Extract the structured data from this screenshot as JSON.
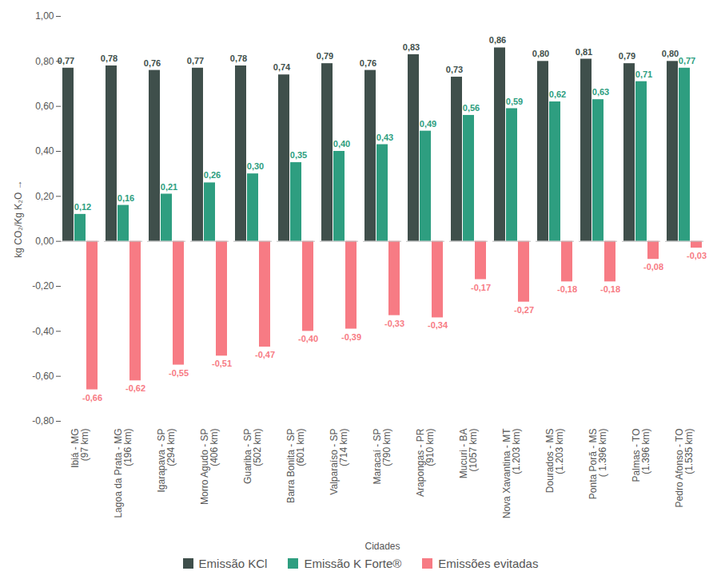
{
  "chart_data": {
    "type": "bar",
    "x_label": "Cidades",
    "y_label": "kg CO₂/Kg K₂O",
    "categories": [
      "Ibiá - MG\n(97 km)",
      "Lagoa da Prata - MG\n(196 km)",
      "Igarapava - SP\n(294 km)",
      "Morro Agudo - SP\n(406 km)",
      "Guariba - SP\n(502 km)",
      "Barra Bonita - SP\n(601 km)",
      "Valparaíso - SP\n(714 km)",
      "Maracaí - SP\n(790 km)",
      "Arapongas - PR\n(910 km)",
      "Mucuri - BA\n(1057 km)",
      "Nova Xavantina - MT\n(1.203 km)",
      "Dourados - MS\n(1.203 km)",
      "Ponta Porã - MS\n( 1.396 km)",
      "Palmas - TO\n(1.396 km)",
      "Pedro Afonso - TO\n(1.535 km)"
    ],
    "series": [
      {
        "name": "Emissão KCl",
        "color": "#3f4f4b",
        "values": [
          0.77,
          0.78,
          0.76,
          0.77,
          0.78,
          0.74,
          0.79,
          0.76,
          0.83,
          0.73,
          0.86,
          0.8,
          0.81,
          0.79,
          0.8
        ],
        "value_labels": [
          "0,77",
          "0,78",
          "0,76",
          "0,77",
          "0,78",
          "0,74",
          "0,79",
          "0,76",
          "0,83",
          "0,73",
          "0,86",
          "0,80",
          "0,81",
          "0,79",
          "0,80"
        ]
      },
      {
        "name": "Emissão K Forte®",
        "color": "#2e9e80",
        "values": [
          0.12,
          0.16,
          0.21,
          0.26,
          0.3,
          0.35,
          0.4,
          0.43,
          0.49,
          0.56,
          0.59,
          0.62,
          0.63,
          0.71,
          0.77
        ],
        "value_labels": [
          "0,12",
          "0,16",
          "0,21",
          "0,26",
          "0,30",
          "0,35",
          "0,40",
          "0,43",
          "0,49",
          "0,56",
          "0,59",
          "0,62",
          "0,63",
          "0,71",
          "0,77"
        ]
      },
      {
        "name": "Emissões evitadas",
        "color": "#f77b84",
        "values": [
          -0.66,
          -0.62,
          -0.55,
          -0.51,
          -0.47,
          -0.4,
          -0.39,
          -0.33,
          -0.34,
          -0.17,
          -0.27,
          -0.18,
          -0.18,
          -0.08,
          -0.03
        ],
        "value_labels": [
          "-0,66",
          "-0,62",
          "-0,55",
          "-0,51",
          "-0,47",
          "-0,40",
          "-0,39",
          "-0,33",
          "-0,34",
          "-0,17",
          "-0,27",
          "-0,18",
          "-0,18",
          "-0,08",
          "-0,03"
        ]
      }
    ],
    "ylim": [
      -0.8,
      1.0
    ],
    "yticks": [
      {
        "value": -0.8,
        "label": "-0,80"
      },
      {
        "value": -0.6,
        "label": "-0,60"
      },
      {
        "value": -0.4,
        "label": "-0,40"
      },
      {
        "value": -0.2,
        "label": "-0,20"
      },
      {
        "value": 0,
        "label": "0,00"
      },
      {
        "value": 0.2,
        "label": "0,20"
      },
      {
        "value": 0.4,
        "label": "0,40"
      },
      {
        "value": 0.6,
        "label": "0,60"
      },
      {
        "value": 0.8,
        "label": "0,80"
      },
      {
        "value": 1.0,
        "label": "1,00"
      }
    ],
    "grid": false,
    "data_labels": true,
    "legend": "bottom"
  }
}
